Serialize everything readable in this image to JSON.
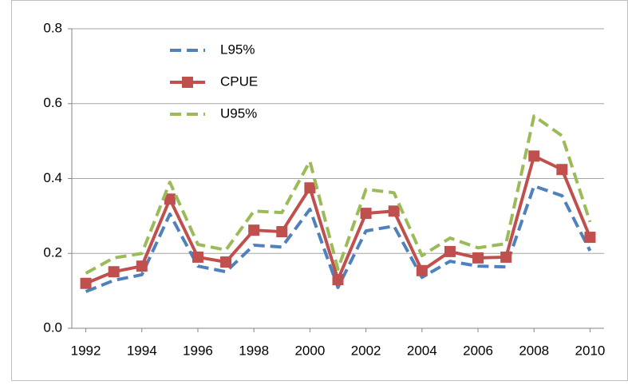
{
  "chart_data": {
    "type": "line",
    "x": [
      1992,
      1993,
      1994,
      1995,
      1996,
      1997,
      1998,
      1999,
      2000,
      2001,
      2002,
      2003,
      2004,
      2005,
      2006,
      2007,
      2008,
      2009,
      2010
    ],
    "series": [
      {
        "name": "L95%",
        "color": "#4f81bd",
        "dashed": true,
        "markers": false,
        "values": [
          0.098,
          0.128,
          0.143,
          0.305,
          0.166,
          0.151,
          0.222,
          0.217,
          0.318,
          0.109,
          0.26,
          0.273,
          0.136,
          0.179,
          0.166,
          0.164,
          0.38,
          0.354,
          0.207
        ]
      },
      {
        "name": "CPUE",
        "color": "#c0504d",
        "dashed": false,
        "markers": true,
        "values": [
          0.12,
          0.151,
          0.166,
          0.345,
          0.19,
          0.177,
          0.262,
          0.258,
          0.375,
          0.13,
          0.307,
          0.313,
          0.154,
          0.205,
          0.188,
          0.19,
          0.46,
          0.424,
          0.243
        ]
      },
      {
        "name": "U95%",
        "color": "#9bbb59",
        "dashed": true,
        "markers": false,
        "values": [
          0.147,
          0.188,
          0.2,
          0.39,
          0.224,
          0.209,
          0.313,
          0.309,
          0.446,
          0.158,
          0.371,
          0.362,
          0.194,
          0.241,
          0.215,
          0.226,
          0.567,
          0.514,
          0.284
        ]
      }
    ],
    "xlim": [
      1991.5,
      2010.5
    ],
    "xticks": [
      1992,
      1994,
      1996,
      1998,
      2000,
      2002,
      2004,
      2006,
      2008,
      2010
    ],
    "ylim": [
      0,
      0.8
    ],
    "yticks": [
      {
        "value": 0,
        "label": "0.0"
      },
      0.2,
      0.4,
      0.6,
      0.8
    ],
    "grid": true,
    "legend": "top-left"
  }
}
